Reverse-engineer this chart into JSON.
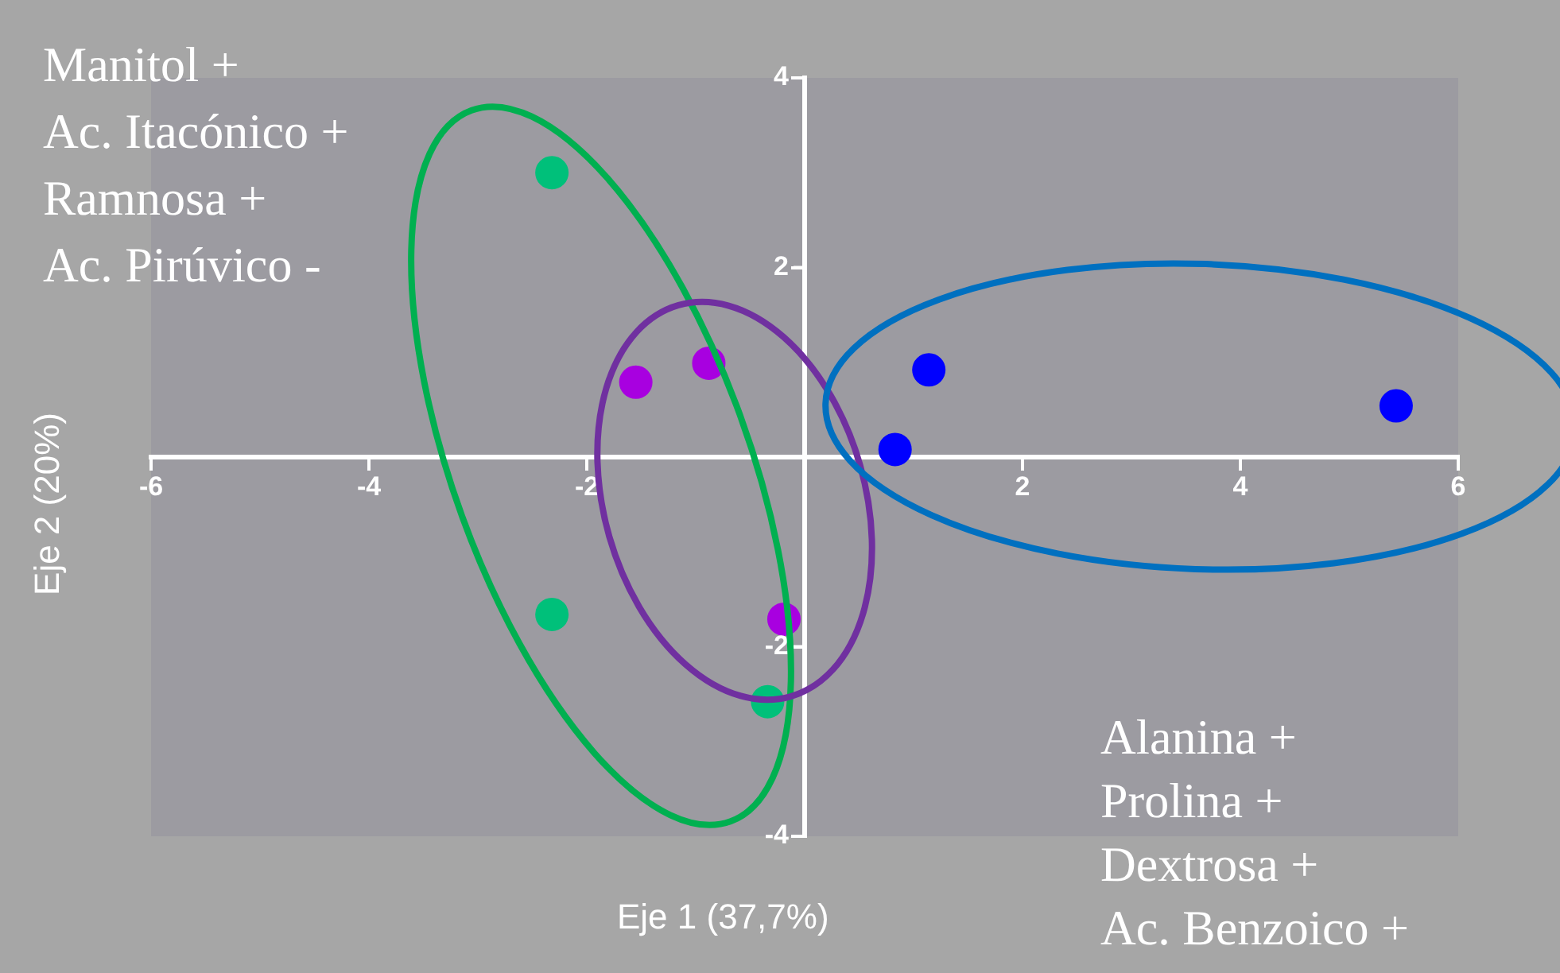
{
  "chart_data": {
    "type": "scatter",
    "xlabel": "Eje 1 (37,7%)",
    "ylabel": "Eje 2 (20%)",
    "xlim": [
      -6,
      6
    ],
    "ylim": [
      -4,
      4
    ],
    "xticks": [
      -6,
      -4,
      -2,
      2,
      4,
      6
    ],
    "yticks": [
      -4,
      -2,
      2,
      4
    ],
    "grid": false,
    "legend": false,
    "marker": "circle",
    "series": [
      {
        "color": "#00c07a",
        "x": [
          -2.32,
          -2.32,
          -0.34
        ],
        "values": [
          3.0,
          -1.66,
          -2.58
        ]
      },
      {
        "color": "#a800e0",
        "x": [
          -1.55,
          -0.88,
          -0.19
        ],
        "values": [
          0.79,
          0.99,
          -1.71
        ]
      },
      {
        "color": "#0000ff",
        "x": [
          1.14,
          0.83,
          5.43
        ],
        "values": [
          0.92,
          0.08,
          0.54
        ]
      }
    ],
    "annotations": [
      "Manitol +",
      "Ac. Itacónico +",
      "Ramnosa +",
      "Ac. Pirúvico -",
      "Alanina +",
      "Prolina +",
      "Dextrosa +",
      "Ac. Benzoico +"
    ]
  }
}
